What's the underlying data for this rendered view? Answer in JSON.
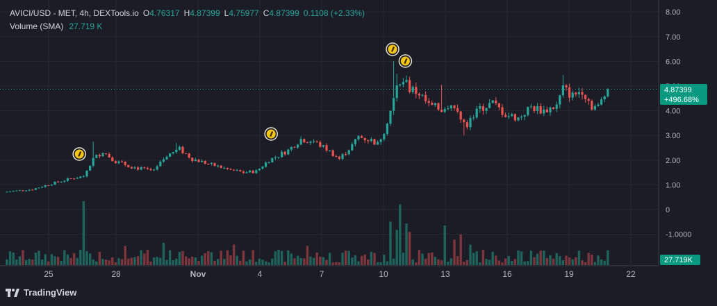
{
  "header": {
    "symbol": "AVICI/USD - MET, 4h, DEXTools.io",
    "o_label": "O",
    "o_value": "4.76317",
    "h_label": "H",
    "h_value": "4.87399",
    "l_label": "L",
    "l_value": "4.75977",
    "c_label": "C",
    "c_value": "4.87399",
    "change": "0.1108 (+2.33%)",
    "volume_label": "Volume (SMA)",
    "volume_value": "27.719 K"
  },
  "price_badge": {
    "price": "4.87399",
    "pct": "+496.68%"
  },
  "volume_badge": "27.719K",
  "branding": "TradingView",
  "colors": {
    "up": "#26a69a",
    "down": "#ef5350",
    "background": "#1b1c25",
    "badge": "#089981"
  },
  "chart_data": {
    "type": "candlestick",
    "interval": "4h",
    "ylim": [
      0,
      8.0
    ],
    "y_ticks": [
      "8.00",
      "7.00",
      "6.00",
      "5.00",
      "4.00",
      "3.00",
      "2.00",
      "1.00",
      "0",
      "-1.0000"
    ],
    "x_ticks": [
      "25",
      "28",
      "Nov",
      "4",
      "7",
      "10",
      "13",
      "16",
      "19",
      "22"
    ],
    "last_close": 4.87399,
    "anchors": [
      {
        "t": 0,
        "p": 0.72
      },
      {
        "t": 8,
        "p": 0.82
      },
      {
        "t": 14,
        "p": 1.05
      },
      {
        "t": 20,
        "p": 1.25
      },
      {
        "t": 24,
        "p": 1.35
      },
      {
        "t": 27,
        "p": 2.05
      },
      {
        "t": 30,
        "p": 2.35
      },
      {
        "t": 34,
        "p": 1.95
      },
      {
        "t": 40,
        "p": 1.7
      },
      {
        "t": 46,
        "p": 1.55
      },
      {
        "t": 50,
        "p": 2.2
      },
      {
        "t": 54,
        "p": 2.45
      },
      {
        "t": 58,
        "p": 2.05
      },
      {
        "t": 63,
        "p": 1.85
      },
      {
        "t": 70,
        "p": 1.6
      },
      {
        "t": 74,
        "p": 1.5
      },
      {
        "t": 78,
        "p": 1.55
      },
      {
        "t": 82,
        "p": 2.0
      },
      {
        "t": 88,
        "p": 2.4
      },
      {
        "t": 92,
        "p": 2.85
      },
      {
        "t": 96,
        "p": 2.75
      },
      {
        "t": 100,
        "p": 2.45
      },
      {
        "t": 104,
        "p": 2.05
      },
      {
        "t": 108,
        "p": 2.6
      },
      {
        "t": 110,
        "p": 2.95
      },
      {
        "t": 114,
        "p": 2.8
      },
      {
        "t": 116,
        "p": 2.65
      },
      {
        "t": 118,
        "p": 3.2
      },
      {
        "t": 120,
        "p": 4.0
      },
      {
        "t": 123,
        "p": 5.3
      },
      {
        "t": 126,
        "p": 4.9
      },
      {
        "t": 129,
        "p": 4.7
      },
      {
        "t": 132,
        "p": 4.2
      },
      {
        "t": 136,
        "p": 4.05
      },
      {
        "t": 139,
        "p": 4.35
      },
      {
        "t": 142,
        "p": 3.6
      },
      {
        "t": 144,
        "p": 3.45
      },
      {
        "t": 148,
        "p": 4.1
      },
      {
        "t": 152,
        "p": 4.3
      },
      {
        "t": 156,
        "p": 3.85
      },
      {
        "t": 160,
        "p": 3.7
      },
      {
        "t": 164,
        "p": 4.15
      },
      {
        "t": 168,
        "p": 4.0
      },
      {
        "t": 172,
        "p": 4.2
      },
      {
        "t": 174,
        "p": 4.9
      },
      {
        "t": 177,
        "p": 4.6
      },
      {
        "t": 180,
        "p": 4.85
      },
      {
        "t": 183,
        "p": 4.2
      },
      {
        "t": 185,
        "p": 4.15
      },
      {
        "t": 188,
        "p": 4.87399
      }
    ],
    "wick_spikes": [
      {
        "t": 27,
        "high": 2.75
      },
      {
        "t": 53,
        "high": 2.7
      },
      {
        "t": 121,
        "high": 6.0
      },
      {
        "t": 122,
        "high": 5.5
      },
      {
        "t": 136,
        "high": 5.05
      },
      {
        "t": 174,
        "high": 5.45
      },
      {
        "t": 143,
        "low": 3.0
      }
    ],
    "volume_spikes": [
      {
        "t": 24,
        "v": 1.0
      },
      {
        "t": 37,
        "v": 0.3
      },
      {
        "t": 49,
        "v": 0.35
      },
      {
        "t": 71,
        "v": 0.32
      },
      {
        "t": 94,
        "v": 0.3
      },
      {
        "t": 120,
        "v": 0.68
      },
      {
        "t": 122,
        "v": 0.55
      },
      {
        "t": 123,
        "v": 0.95
      },
      {
        "t": 125,
        "v": 0.65
      },
      {
        "t": 126,
        "v": 0.52
      },
      {
        "t": 137,
        "v": 0.62
      },
      {
        "t": 140,
        "v": 0.4
      },
      {
        "t": 142,
        "v": 0.48
      },
      {
        "t": 145,
        "v": 0.32
      }
    ],
    "markers_t": [
      22,
      82,
      120,
      124
    ]
  }
}
